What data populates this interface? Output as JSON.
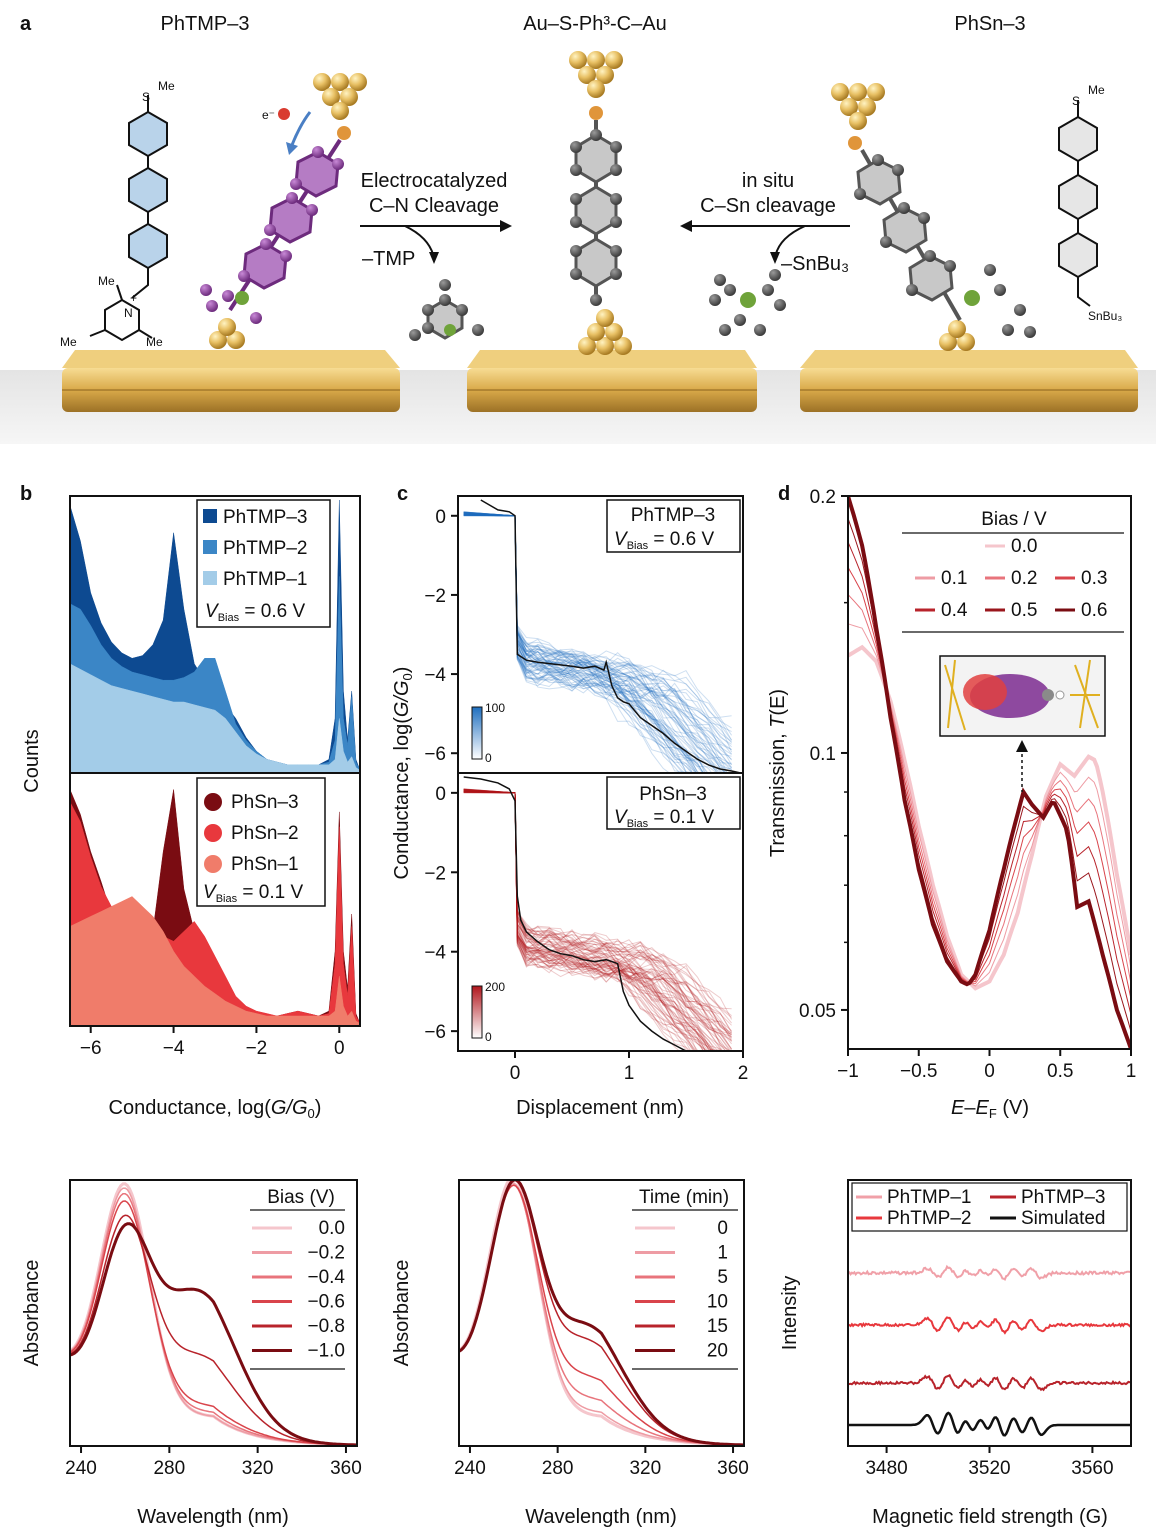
{
  "panel_a": {
    "letter": "a",
    "title_left": "PhTMP–3",
    "title_center": "Au–S-Ph³-C–Au",
    "title_right": "PhSn–3",
    "arrow_left_line1": "Electrocatalyzed",
    "arrow_left_line2": "C–N Cleavage",
    "arrow_left_byproduct": "–TMP",
    "arrow_right_line1": "in situ",
    "arrow_right_line2": "C–Sn cleavage",
    "arrow_right_byproduct": "–SnBu₃",
    "electron": "e⁻",
    "smeL": "S",
    "meL": "Me",
    "me1": "Me",
    "me2": "Me",
    "me3": "Me",
    "nplus": "N",
    "plus": "+",
    "smeR": "S",
    "meR": "Me",
    "snbu3": "SnBu₃"
  },
  "chart_data": [
    {
      "id": "b",
      "letter": "b",
      "type": "area",
      "xlabel_pre": "Conductance, log(",
      "xlabel_var": "G/G",
      "xlabel_sub": "0",
      "xlabel_post": ")",
      "ylabel": "Counts",
      "xlim": [
        -6.5,
        0.5
      ],
      "xticks": [
        "−6",
        "−4",
        "−2",
        "0"
      ],
      "xtick_values": [
        -6,
        -4,
        -2,
        0
      ],
      "legend_top": [
        "PhTMP–3",
        "PhTMP–2",
        "PhTMP–1"
      ],
      "legend_top_bias_var": "V",
      "legend_top_bias_sub": "Bias",
      "legend_top_bias_val": " = 0.6 V",
      "legend_bottom": [
        "PhSn–3",
        "PhSn–2",
        "PhSn–1"
      ],
      "legend_bottom_bias_var": "V",
      "legend_bottom_bias_sub": "Bias",
      "legend_bottom_bias_val": " = 0.1 V",
      "colors_top": [
        "#0d4a91",
        "#3b86c6",
        "#a3cce8"
      ],
      "colors_bottom": [
        "#7a0c12",
        "#e8383d",
        "#f07c6a"
      ],
      "x": [
        -6.5,
        -6.25,
        -6.0,
        -5.75,
        -5.5,
        -5.25,
        -5.0,
        -4.75,
        -4.5,
        -4.25,
        -4.0,
        -3.75,
        -3.5,
        -3.25,
        -3.0,
        -2.75,
        -2.5,
        -2.25,
        -2.0,
        -1.75,
        -1.5,
        -1.25,
        -1.0,
        -0.75,
        -0.5,
        -0.25,
        -0.1,
        0.0,
        0.1,
        0.2,
        0.3,
        0.4,
        0.5
      ],
      "series_top": [
        {
          "name": "PhTMP–3",
          "values": [
            0.98,
            0.85,
            0.66,
            0.55,
            0.48,
            0.44,
            0.42,
            0.43,
            0.47,
            0.56,
            0.88,
            0.6,
            0.4,
            0.34,
            0.3,
            0.25,
            0.2,
            0.13,
            0.08,
            0.05,
            0.04,
            0.03,
            0.03,
            0.03,
            0.03,
            0.05,
            0.2,
            1.0,
            0.3,
            0.12,
            0.3,
            0.05,
            0.01
          ]
        },
        {
          "name": "PhTMP–2",
          "values": [
            0.62,
            0.6,
            0.54,
            0.47,
            0.42,
            0.39,
            0.37,
            0.36,
            0.35,
            0.34,
            0.34,
            0.35,
            0.37,
            0.42,
            0.42,
            0.3,
            0.18,
            0.12,
            0.08,
            0.05,
            0.04,
            0.03,
            0.03,
            0.03,
            0.03,
            0.04,
            0.12,
            0.72,
            0.2,
            0.1,
            0.28,
            0.04,
            0.01
          ]
        },
        {
          "name": "PhTMP–1",
          "values": [
            0.4,
            0.38,
            0.36,
            0.34,
            0.32,
            0.31,
            0.3,
            0.29,
            0.28,
            0.27,
            0.26,
            0.26,
            0.25,
            0.24,
            0.23,
            0.2,
            0.15,
            0.1,
            0.07,
            0.05,
            0.04,
            0.03,
            0.03,
            0.03,
            0.03,
            0.03,
            0.05,
            0.2,
            0.08,
            0.04,
            0.06,
            0.02,
            0.01
          ]
        }
      ],
      "series_bottom": [
        {
          "name": "PhSn–3",
          "values": [
            0.95,
            0.85,
            0.7,
            0.58,
            0.45,
            0.36,
            0.32,
            0.32,
            0.38,
            0.7,
            0.95,
            0.55,
            0.38,
            0.3,
            0.22,
            0.14,
            0.1,
            0.07,
            0.05,
            0.04,
            0.04,
            0.05,
            0.06,
            0.05,
            0.04,
            0.06,
            0.3,
            0.86,
            0.3,
            0.15,
            0.45,
            0.05,
            0.01
          ]
        },
        {
          "name": "PhSn–2",
          "values": [
            0.9,
            0.82,
            0.68,
            0.56,
            0.48,
            0.42,
            0.4,
            0.4,
            0.38,
            0.36,
            0.34,
            0.38,
            0.42,
            0.36,
            0.28,
            0.2,
            0.12,
            0.08,
            0.06,
            0.05,
            0.04,
            0.05,
            0.06,
            0.05,
            0.04,
            0.05,
            0.25,
            0.8,
            0.25,
            0.12,
            0.4,
            0.04,
            0.01
          ]
        },
        {
          "name": "PhSn–1",
          "values": [
            0.4,
            0.42,
            0.44,
            0.46,
            0.48,
            0.5,
            0.52,
            0.48,
            0.44,
            0.38,
            0.3,
            0.24,
            0.2,
            0.16,
            0.13,
            0.1,
            0.08,
            0.06,
            0.05,
            0.04,
            0.04,
            0.04,
            0.04,
            0.04,
            0.04,
            0.04,
            0.06,
            0.2,
            0.08,
            0.04,
            0.06,
            0.02,
            0.01
          ]
        }
      ]
    },
    {
      "id": "c",
      "letter": "c",
      "type": "heatmap",
      "xlabel": "Displacement (nm)",
      "ylabel_pre": "Conductance, log(",
      "ylabel_var": "G/G",
      "ylabel_sub": "0",
      "ylabel_post": ")",
      "xlim": [
        -0.5,
        2
      ],
      "ylim": [
        -6.5,
        0.5
      ],
      "xticks": [
        "0",
        "1",
        "2"
      ],
      "xtick_values": [
        0,
        1,
        2
      ],
      "yticks": [
        "0",
        "−2",
        "−4",
        "−6"
      ],
      "ytick_values": [
        0,
        -2,
        -4,
        -6
      ],
      "top": {
        "name": "PhTMP–3",
        "bias_var": "V",
        "bias_sub": "Bias",
        "bias_val": " = 0.6 V",
        "colorbar_max": "100",
        "colorbar_min": "0",
        "color": "#1f6fbf",
        "trace_x": [
          -0.3,
          -0.15,
          -0.05,
          0.0,
          0.02,
          0.1,
          0.2,
          0.35,
          0.5,
          0.6,
          0.7,
          0.78,
          0.8,
          0.85,
          0.9,
          0.95,
          1.0,
          1.1,
          1.2,
          1.3,
          1.4,
          1.5,
          1.6,
          1.7,
          1.8,
          1.9,
          1.98
        ],
        "trace_y": [
          0.4,
          0.15,
          0.1,
          0.0,
          -3.5,
          -3.65,
          -3.7,
          -3.75,
          -3.8,
          -3.85,
          -3.8,
          -3.9,
          -3.7,
          -4.3,
          -4.6,
          -4.7,
          -4.75,
          -5.1,
          -5.3,
          -5.5,
          -5.75,
          -5.95,
          -6.15,
          -6.3,
          -6.4,
          -6.45,
          -6.5
        ]
      },
      "bottom": {
        "name": "PhSn–3",
        "bias_var": "V",
        "bias_sub": "Bias",
        "bias_val": " = 0.1 V",
        "colorbar_max": "200",
        "colorbar_min": "0",
        "color": "#b0151c",
        "trace_x": [
          -0.45,
          -0.3,
          -0.15,
          -0.05,
          0.0,
          0.02,
          0.05,
          0.1,
          0.2,
          0.3,
          0.4,
          0.5,
          0.6,
          0.7,
          0.8,
          0.9,
          0.95,
          1.0,
          1.1,
          1.2,
          1.3,
          1.4,
          1.5
        ],
        "trace_y": [
          0.4,
          0.35,
          0.25,
          0.1,
          -0.2,
          -2.6,
          -3.2,
          -3.5,
          -3.75,
          -3.95,
          -4.05,
          -4.1,
          -4.2,
          -4.25,
          -4.2,
          -4.3,
          -5.0,
          -5.35,
          -5.75,
          -6.0,
          -6.2,
          -6.35,
          -6.5
        ]
      }
    },
    {
      "id": "d",
      "letter": "d",
      "type": "line",
      "xlabel_a": "E",
      "xlabel_dash": "–",
      "xlabel_b": "E",
      "xlabel_sub": "F",
      "xlabel_post": " (V)",
      "ylabel_pre": "Transmission, ",
      "ylabel_var": "T",
      "ylabel_post": "(E)",
      "xlim": [
        -1,
        1
      ],
      "ylim": [
        0.045,
        0.2
      ],
      "yscale": "log",
      "xticks": [
        "−1",
        "−0.5",
        "0",
        "0.5",
        "1"
      ],
      "xtick_values": [
        -1,
        -0.5,
        0,
        0.5,
        1
      ],
      "yticks": [
        "0.2",
        "0.1",
        "0.05"
      ],
      "ytick_values": [
        0.2,
        0.1,
        0.05
      ],
      "legend_title": "Bias / V",
      "legend_entries": [
        "0.0",
        "0.1",
        "0.2",
        "0.3",
        "0.4",
        "0.5",
        "0.6"
      ],
      "colors": [
        "#f5c6cc",
        "#ee9ca4",
        "#e8747c",
        "#d9444b",
        "#b8232b",
        "#9a161c",
        "#7a0c12"
      ],
      "series": [
        {
          "name": "0.0",
          "x": [
            -1.0,
            -0.9,
            -0.8,
            -0.7,
            -0.6,
            -0.5,
            -0.4,
            -0.3,
            -0.2,
            -0.1,
            0.0,
            0.1,
            0.2,
            0.3,
            0.4,
            0.5,
            0.6,
            0.7,
            0.75,
            0.8,
            0.9,
            1.0
          ],
          "y": [
            0.13,
            0.133,
            0.128,
            0.115,
            0.098,
            0.082,
            0.07,
            0.061,
            0.055,
            0.053,
            0.054,
            0.058,
            0.065,
            0.076,
            0.089,
            0.097,
            0.094,
            0.099,
            0.098,
            0.09,
            0.072,
            0.058
          ]
        },
        {
          "name": "0.6",
          "x": [
            -1.0,
            -0.9,
            -0.8,
            -0.7,
            -0.6,
            -0.5,
            -0.4,
            -0.3,
            -0.2,
            -0.15,
            -0.1,
            0.0,
            0.1,
            0.2,
            0.24,
            0.3,
            0.38,
            0.45,
            0.55,
            0.62,
            0.7,
            0.8,
            0.9,
            1.0
          ],
          "y": [
            0.2,
            0.175,
            0.14,
            0.11,
            0.088,
            0.073,
            0.063,
            0.057,
            0.054,
            0.0535,
            0.055,
            0.062,
            0.073,
            0.085,
            0.09,
            0.087,
            0.084,
            0.088,
            0.081,
            0.066,
            0.067,
            0.058,
            0.05,
            0.045
          ]
        }
      ]
    },
    {
      "id": "e",
      "type": "line",
      "xlabel": "Wavelength (nm)",
      "ylabel": "Absorbance",
      "xlim": [
        235,
        365
      ],
      "xticks": [
        "240",
        "280",
        "320",
        "360"
      ],
      "xtick_values": [
        240,
        280,
        320,
        360
      ],
      "legend_title": "Bias (V)",
      "legend_entries": [
        "0.0",
        "−0.2",
        "−0.4",
        "−0.6",
        "−0.8",
        "−1.0"
      ],
      "colors": [
        "#f5c6cc",
        "#ee9ca4",
        "#e8747c",
        "#d9444b",
        "#b8232b",
        "#7a0c12"
      ]
    },
    {
      "id": "f",
      "type": "line",
      "xlabel": "Wavelength (nm)",
      "ylabel": "Absorbance",
      "xlim": [
        235,
        365
      ],
      "xticks": [
        "240",
        "280",
        "320",
        "360"
      ],
      "xtick_values": [
        240,
        280,
        320,
        360
      ],
      "legend_title": "Time (min)",
      "legend_entries": [
        "0",
        "1",
        "5",
        "10",
        "15",
        "20"
      ],
      "colors": [
        "#f5c6cc",
        "#ee9ca4",
        "#e8747c",
        "#d9444b",
        "#b8232b",
        "#7a0c12"
      ]
    },
    {
      "id": "g",
      "type": "line",
      "xlabel": "Magnetic field strength (G)",
      "ylabel": "Intensity",
      "xlim": [
        3465,
        3575
      ],
      "xticks": [
        "3480",
        "3520",
        "3560"
      ],
      "xtick_values": [
        3480,
        3520,
        3560
      ],
      "legend_entries": [
        "PhTMP–1",
        "PhTMP–3",
        "PhTMP–2",
        "Simulated"
      ],
      "colors": [
        "#f0a0a8",
        "#b8232b",
        "#e8383d",
        "#111111"
      ]
    }
  ]
}
